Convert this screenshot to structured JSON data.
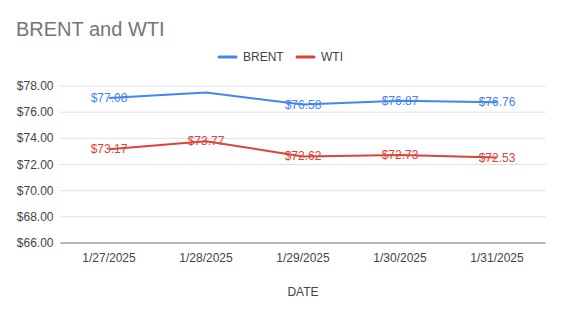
{
  "chart_data": {
    "type": "line",
    "title": "BRENT and WTI",
    "x_label": "DATE",
    "categories": [
      "1/27/2025",
      "1/28/2025",
      "1/29/2025",
      "1/30/2025",
      "1/31/2025"
    ],
    "series": [
      {
        "name": "BRENT",
        "color": "#4285f4",
        "values": [
          77.08,
          77.5,
          76.58,
          76.87,
          76.76
        ],
        "value_labels": [
          "$77.08",
          null,
          "$76.58",
          "$76.87",
          "$76.76"
        ]
      },
      {
        "name": "WTI",
        "color": "#db4437",
        "values": [
          73.17,
          73.77,
          72.62,
          72.73,
          72.53
        ],
        "value_labels": [
          "$73.17",
          "$73.77",
          "$72.62",
          "$72.73",
          "$72.53"
        ]
      }
    ],
    "ylim": [
      66,
      78
    ],
    "yticks": [
      {
        "value": 66,
        "label": "$66.00"
      },
      {
        "value": 68,
        "label": "$68.00"
      },
      {
        "value": 70,
        "label": "$70.00"
      },
      {
        "value": 72,
        "label": "$72.00"
      },
      {
        "value": 74,
        "label": "$74.00"
      },
      {
        "value": 76,
        "label": "$76.00"
      },
      {
        "value": 78,
        "label": "$78.00"
      }
    ],
    "grid": true,
    "legend": "top",
    "data_labels": true
  }
}
